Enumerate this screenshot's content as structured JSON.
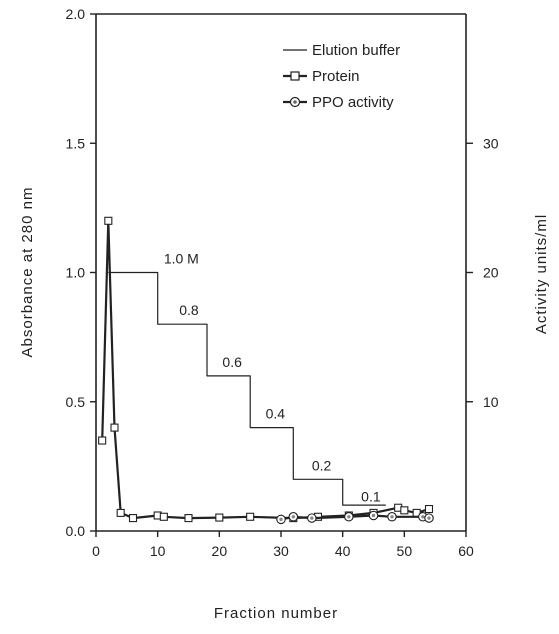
{
  "chart_data": {
    "type": "line",
    "xlabel": "Fraction number",
    "ylabel_left": "Absorbance at 280 nm",
    "ylabel_right": "Activity units/ml",
    "xlim": [
      0,
      60
    ],
    "ylim_left": [
      0,
      2.0
    ],
    "ylim_right": [
      0,
      40
    ],
    "x_ticks": [
      0,
      10,
      20,
      30,
      40,
      50,
      60
    ],
    "y_left_ticks": [
      {
        "value": 0.0,
        "label": "0.0"
      },
      {
        "value": 0.5,
        "label": "0.5"
      },
      {
        "value": 1.0,
        "label": "1.0"
      },
      {
        "value": 1.5,
        "label": "1.5"
      },
      {
        "value": 2.0,
        "label": "2.0"
      }
    ],
    "y_right_ticks": [
      {
        "value": 10,
        "label": "10"
      },
      {
        "value": 20,
        "label": "20"
      },
      {
        "value": 30,
        "label": "30"
      }
    ],
    "grid": false,
    "legend_position": "top-right",
    "legend": [
      "Elution buffer",
      "Protein",
      "PPO activity"
    ],
    "series": [
      {
        "name": "Elution buffer",
        "axis": "left",
        "style": "step",
        "x": [
          2,
          10,
          10,
          18,
          18,
          25,
          25,
          32,
          32,
          40,
          40,
          47
        ],
        "y": [
          1.0,
          1.0,
          0.8,
          0.8,
          0.6,
          0.6,
          0.4,
          0.4,
          0.2,
          0.2,
          0.1,
          0.1
        ]
      },
      {
        "name": "Protein",
        "axis": "left",
        "marker": "square",
        "x": [
          1,
          2,
          3,
          4,
          6,
          10,
          11,
          15,
          20,
          25,
          32,
          36,
          41,
          45,
          49,
          50,
          52,
          54
        ],
        "y": [
          0.35,
          1.2,
          0.4,
          0.07,
          0.05,
          0.06,
          0.055,
          0.05,
          0.052,
          0.055,
          0.05,
          0.055,
          0.06,
          0.07,
          0.09,
          0.08,
          0.07,
          0.085
        ]
      },
      {
        "name": "PPO activity",
        "axis": "left",
        "marker": "circle-dot",
        "x": [
          30,
          32,
          35,
          41,
          45,
          48,
          53,
          54
        ],
        "y": [
          0.045,
          0.055,
          0.05,
          0.055,
          0.06,
          0.055,
          0.055,
          0.05
        ]
      }
    ],
    "step_labels": [
      {
        "text": "1.0 M",
        "x": 11,
        "y": 1.035
      },
      {
        "text": "0.8",
        "x": 13.5,
        "y": 0.835
      },
      {
        "text": "0.6",
        "x": 20.5,
        "y": 0.635
      },
      {
        "text": "0.4",
        "x": 27.5,
        "y": 0.435
      },
      {
        "text": "0.2",
        "x": 35,
        "y": 0.235
      },
      {
        "text": "0.1",
        "x": 43,
        "y": 0.115
      }
    ],
    "colors": {
      "ink": "#222222",
      "marker_fill": "#ffffff",
      "dot_fill": "#888888"
    }
  }
}
